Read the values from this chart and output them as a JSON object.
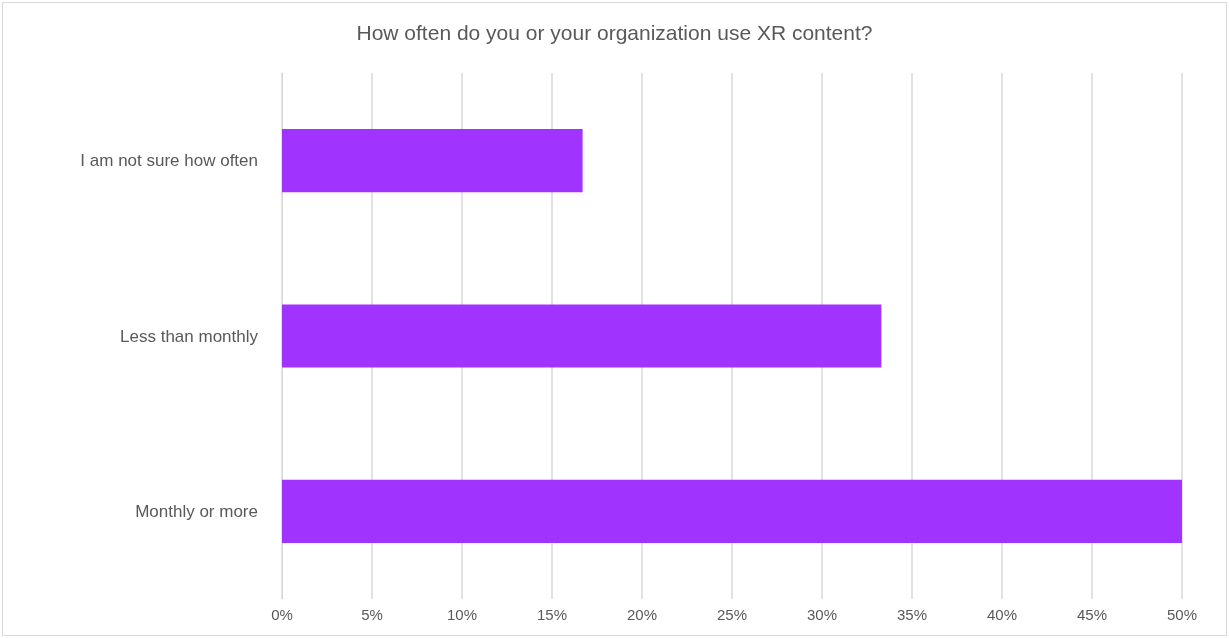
{
  "chart_data": {
    "type": "bar",
    "orientation": "horizontal",
    "title": "How often do you or your organization use XR content?",
    "categories": [
      "I am not sure how often",
      "Less than monthly",
      "Monthly or more"
    ],
    "values": [
      16.7,
      33.3,
      50
    ],
    "color": "#a133ff",
    "xlim": [
      0,
      50
    ],
    "xticks": [
      {
        "value": 0,
        "label": "0%"
      },
      {
        "value": 5,
        "label": "5%"
      },
      {
        "value": 10,
        "label": "10%"
      },
      {
        "value": 15,
        "label": "15%"
      },
      {
        "value": 20,
        "label": "20%"
      },
      {
        "value": 25,
        "label": "25%"
      },
      {
        "value": 30,
        "label": "30%"
      },
      {
        "value": 35,
        "label": "35%"
      },
      {
        "value": 40,
        "label": "40%"
      },
      {
        "value": 45,
        "label": "45%"
      },
      {
        "value": 50,
        "label": "50%"
      }
    ],
    "grid": "x"
  }
}
